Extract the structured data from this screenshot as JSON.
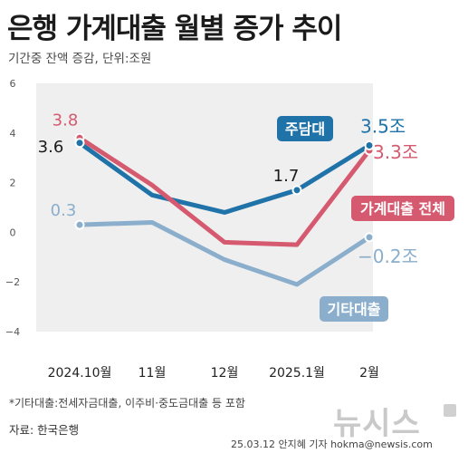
{
  "header": {
    "title": "은행 가계대출 월별 증가 추이",
    "subtitle": "기간중 잔액 증감, 단위:조원"
  },
  "footer": {
    "footnote": "*기타대출:전세자금대출, 이주비·중도금대출 등 포함",
    "source": "자료: 한국은행",
    "credit": "25.03.12 안지혜 기자 hokma@newsis.com",
    "brand": "뉴시스"
  },
  "colors": {
    "plot_bg": "#efefef",
    "mortgage": "#1f73a8",
    "total": "#d55a6f",
    "other": "#8aaecb",
    "axis_text": "#555555"
  },
  "chart_data": {
    "type": "line",
    "title": "은행 가계대출 월별 증가 추이",
    "subtitle": "기간중 잔액 증감, 단위:조원",
    "xlabel": "",
    "ylabel": "",
    "ylim": [
      -4,
      6
    ],
    "yticks": [
      6,
      4,
      2,
      0,
      -2,
      -4
    ],
    "ytick_labels": [
      "6",
      "4",
      "2",
      "0",
      "−2",
      "−4"
    ],
    "categories": [
      "2024.10",
      "2024.11",
      "2024.12",
      "2025.1",
      "2025.2"
    ],
    "xtick_labels": [
      "2024.10월",
      "11월",
      "12월",
      "2025.1월",
      "2월"
    ],
    "x_positions": [
      0,
      0.5,
      1,
      1.5,
      2,
      2.5,
      3,
      3.5,
      4
    ],
    "grid": false,
    "series": [
      {
        "name": "가계대출 전체",
        "color": "#d55a6f",
        "values": [
          3.8,
          1.9,
          -0.4,
          -0.5,
          3.3
        ],
        "full_path": [
          3.8,
          1.9,
          -0.4,
          -0.5,
          3.3
        ],
        "label_start": "3.8",
        "label_end": "3.3조"
      },
      {
        "name": "주담대",
        "color": "#1f73a8",
        "values": [
          3.6,
          1.5,
          0.8,
          1.7,
          3.5
        ],
        "full_path": [
          3.6,
          1.5,
          0.8,
          1.7,
          3.5
        ],
        "label_start": "3.6",
        "label_mid": "1.7",
        "label_end": "3.5조"
      },
      {
        "name": "기타대출",
        "color": "#8aaecb",
        "values": [
          0.3,
          0.4,
          -1.1,
          -2.1,
          -0.2
        ],
        "full_path": [
          0.3,
          0.4,
          -1.1,
          -2.1,
          -0.2
        ],
        "label_start": "0.3",
        "label_end": "−0.2조"
      }
    ]
  }
}
